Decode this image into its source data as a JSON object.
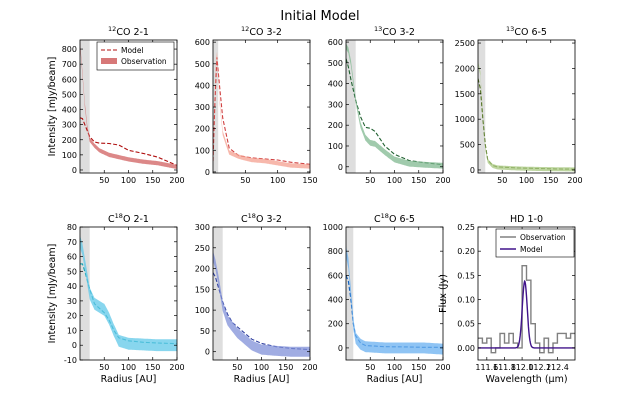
{
  "figure_title": "Initial Model",
  "chart_data": [
    {
      "type": "line",
      "title": "12CO 2-1",
      "title_sup": "12",
      "title_main": "CO 2-1",
      "xlim": [
        0,
        200
      ],
      "ylim": [
        -20,
        860
      ],
      "xticks": [
        "50",
        "100",
        "150",
        "200"
      ],
      "xtick_values": [
        50,
        100,
        150,
        200
      ],
      "yticks": [
        "0",
        "100",
        "200",
        "300",
        "400",
        "500",
        "600",
        "700",
        "800"
      ],
      "ytick_values": [
        0,
        100,
        200,
        300,
        400,
        500,
        600,
        700,
        800
      ],
      "ylabel": "Intensity [mJy/beam]",
      "xlabel": "",
      "shade": [
        0,
        20
      ],
      "color": "#d06060",
      "legend": [
        "Model",
        "Observation"
      ],
      "series": [
        {
          "name": "Model",
          "style": "dashed",
          "color": "#b01010",
          "x": [
            0,
            5,
            10,
            20,
            30,
            40,
            60,
            80,
            100,
            130,
            160,
            200
          ],
          "y": [
            345,
            340,
            300,
            220,
            185,
            178,
            175,
            165,
            130,
            110,
            85,
            30
          ]
        },
        {
          "name": "Observation",
          "style": "band",
          "color": "#d06060",
          "x": [
            0,
            5,
            10,
            15,
            20,
            30,
            40,
            50,
            60,
            80,
            100,
            130,
            160,
            200
          ],
          "y": [
            840,
            640,
            430,
            280,
            200,
            160,
            130,
            115,
            100,
            85,
            70,
            55,
            45,
            20
          ],
          "spread": 14
        }
      ]
    },
    {
      "type": "line",
      "title": "12CO 3-2",
      "title_sup": "12",
      "title_main": "CO 3-2",
      "xlim": [
        0,
        150
      ],
      "ylim": [
        -5,
        610
      ],
      "xticks": [
        "50",
        "100",
        "150"
      ],
      "xtick_values": [
        50,
        100,
        150
      ],
      "yticks": [
        "0",
        "100",
        "200",
        "300",
        "400",
        "500",
        "600"
      ],
      "ytick_values": [
        0,
        100,
        200,
        300,
        400,
        500,
        600
      ],
      "ylabel": "",
      "xlabel": "",
      "shade": [
        0,
        8
      ],
      "color": "#f4a090",
      "series": [
        {
          "name": "Model",
          "style": "dashed",
          "color": "#d04040",
          "x": [
            0,
            3,
            6,
            10,
            15,
            25,
            40,
            60,
            80,
            100,
            120,
            150
          ],
          "y": [
            50,
            320,
            530,
            400,
            250,
            110,
            75,
            65,
            60,
            55,
            45,
            35
          ]
        },
        {
          "name": "Observation",
          "style": "band",
          "color": "#f4a090",
          "x": [
            0,
            3,
            6,
            10,
            15,
            25,
            40,
            60,
            80,
            100,
            120,
            150
          ],
          "y": [
            40,
            420,
            560,
            330,
            180,
            90,
            70,
            55,
            50,
            40,
            30,
            25
          ],
          "spread": 10
        }
      ]
    },
    {
      "type": "line",
      "title": "13CO 3-2",
      "title_sup": "13",
      "title_main": "CO 3-2",
      "xlim": [
        0,
        200
      ],
      "ylim": [
        -30,
        610
      ],
      "xticks": [
        "50",
        "100",
        "150",
        "200"
      ],
      "xtick_values": [
        50,
        100,
        150,
        200
      ],
      "yticks": [
        "0",
        "100",
        "200",
        "300",
        "400",
        "500",
        "600"
      ],
      "ytick_values": [
        0,
        100,
        200,
        300,
        400,
        500,
        600
      ],
      "ylabel": "",
      "xlabel": "",
      "shade": [
        0,
        20
      ],
      "color": "#80b890",
      "series": [
        {
          "name": "Model",
          "style": "dashed",
          "color": "#206030",
          "x": [
            0,
            5,
            10,
            20,
            30,
            40,
            50,
            60,
            80,
            100,
            130,
            160,
            200
          ],
          "y": [
            520,
            480,
            420,
            320,
            240,
            190,
            185,
            170,
            100,
            60,
            30,
            20,
            10
          ]
        },
        {
          "name": "Observation",
          "style": "band",
          "color": "#80b890",
          "x": [
            0,
            5,
            10,
            20,
            30,
            40,
            50,
            60,
            80,
            100,
            130,
            160,
            200
          ],
          "y": [
            580,
            560,
            500,
            320,
            200,
            140,
            115,
            110,
            70,
            35,
            15,
            10,
            5
          ],
          "spread": 14
        }
      ]
    },
    {
      "type": "line",
      "title": "13CO 6-5",
      "title_sup": "13",
      "title_main": "CO 6-5",
      "xlim": [
        0,
        200
      ],
      "ylim": [
        -60,
        2560
      ],
      "xticks": [
        "50",
        "100",
        "150",
        "200"
      ],
      "xtick_values": [
        50,
        100,
        150,
        200
      ],
      "yticks": [
        "0",
        "500",
        "1000",
        "1500",
        "2000",
        "2500"
      ],
      "ytick_values": [
        0,
        500,
        1000,
        1500,
        2000,
        2500
      ],
      "ylabel": "",
      "xlabel": "",
      "shade": [
        0,
        15
      ],
      "color": "#a8c880",
      "series": [
        {
          "name": "Model",
          "style": "dashed",
          "color": "#507020",
          "x": [
            0,
            5,
            10,
            15,
            20,
            30,
            40,
            60,
            80,
            120,
            160,
            200
          ],
          "y": [
            1800,
            1600,
            1000,
            500,
            200,
            90,
            60,
            50,
            40,
            30,
            20,
            15
          ]
        },
        {
          "name": "Observation",
          "style": "band",
          "color": "#a8c880",
          "x": [
            0,
            5,
            10,
            15,
            20,
            30,
            40,
            60,
            80,
            120,
            160,
            200
          ],
          "y": [
            2100,
            1900,
            1100,
            450,
            180,
            80,
            50,
            40,
            30,
            20,
            15,
            10
          ],
          "spread": 40
        }
      ]
    },
    {
      "type": "line",
      "title": "C18O 2-1",
      "title_main_a": "C",
      "title_sup": "18",
      "title_main": "O 2-1",
      "xlim": [
        0,
        200
      ],
      "ylim": [
        -10,
        80
      ],
      "xticks": [
        "50",
        "100",
        "150",
        "200"
      ],
      "xtick_values": [
        50,
        100,
        150,
        200
      ],
      "yticks": [
        "-10",
        "0",
        "10",
        "20",
        "30",
        "40",
        "50",
        "60",
        "70",
        "80"
      ],
      "ytick_values": [
        -10,
        0,
        10,
        20,
        30,
        40,
        50,
        60,
        70,
        80
      ],
      "ylabel": "Intensity [mJy/beam]",
      "xlabel": "Radius [AU]",
      "shade": [
        0,
        20
      ],
      "color": "#60c8e8",
      "series": [
        {
          "name": "Model",
          "style": "dashed",
          "color": "#10a0b0",
          "x": [
            0,
            5,
            10,
            20,
            30,
            40,
            50,
            60,
            70,
            80,
            100,
            130,
            160,
            200
          ],
          "y": [
            55,
            55,
            50,
            38,
            28,
            25,
            22,
            17,
            10,
            5,
            3,
            2,
            1.5,
            1
          ]
        },
        {
          "name": "Observation",
          "style": "band",
          "color": "#60c8e8",
          "x": [
            0,
            5,
            10,
            20,
            30,
            40,
            50,
            60,
            70,
            80,
            100,
            130,
            160,
            200
          ],
          "y": [
            70,
            65,
            55,
            35,
            28,
            26,
            24,
            18,
            10,
            3,
            1,
            0.5,
            0,
            0
          ],
          "spread": 4
        }
      ]
    },
    {
      "type": "line",
      "title": "C18O 3-2",
      "title_main_a": "C",
      "title_sup": "18",
      "title_main": "O 3-2",
      "xlim": [
        0,
        200
      ],
      "ylim": [
        -20,
        300
      ],
      "xticks": [
        "50",
        "100",
        "150",
        "200"
      ],
      "xtick_values": [
        50,
        100,
        150,
        200
      ],
      "yticks": [
        "0",
        "50",
        "100",
        "150",
        "200",
        "250",
        "300"
      ],
      "ytick_values": [
        0,
        50,
        100,
        150,
        200,
        250,
        300
      ],
      "ylabel": "",
      "xlabel": "Radius [AU]",
      "shade": [
        0,
        20
      ],
      "color": "#8090d8",
      "series": [
        {
          "name": "Model",
          "style": "dashed",
          "color": "#3040a0",
          "x": [
            0,
            5,
            10,
            20,
            30,
            40,
            50,
            60,
            80,
            100,
            130,
            160,
            200
          ],
          "y": [
            190,
            180,
            160,
            120,
            90,
            70,
            60,
            50,
            30,
            20,
            12,
            8,
            5
          ]
        },
        {
          "name": "Observation",
          "style": "band",
          "color": "#8090d8",
          "x": [
            0,
            5,
            10,
            20,
            30,
            40,
            50,
            60,
            80,
            100,
            130,
            160,
            200
          ],
          "y": [
            230,
            210,
            180,
            110,
            75,
            60,
            45,
            35,
            15,
            5,
            2,
            0,
            0
          ],
          "spread": 12
        }
      ]
    },
    {
      "type": "line",
      "title": "C18O 6-5",
      "title_main_a": "C",
      "title_sup": "18",
      "title_main": "O 6-5",
      "xlim": [
        0,
        200
      ],
      "ylim": [
        -100,
        1000
      ],
      "xticks": [
        "50",
        "100",
        "150",
        "200"
      ],
      "xtick_values": [
        50,
        100,
        150,
        200
      ],
      "yticks": [
        "0",
        "200",
        "400",
        "600",
        "800",
        "1000"
      ],
      "ytick_values": [
        0,
        200,
        400,
        600,
        800,
        1000
      ],
      "ylabel": "",
      "xlabel": "Radius [AU]",
      "shade": [
        0,
        15
      ],
      "color": "#6ab0f0",
      "series": [
        {
          "name": "Model",
          "style": "dashed",
          "color": "#1060c0",
          "x": [
            0,
            5,
            10,
            15,
            20,
            30,
            40,
            60,
            80,
            120,
            160,
            200
          ],
          "y": [
            600,
            550,
            400,
            200,
            100,
            40,
            20,
            15,
            10,
            8,
            5,
            5
          ]
        },
        {
          "name": "Observation",
          "style": "band",
          "color": "#6ab0f0",
          "x": [
            0,
            5,
            10,
            15,
            20,
            30,
            40,
            60,
            80,
            120,
            160,
            200
          ],
          "y": [
            800,
            700,
            450,
            200,
            80,
            30,
            10,
            5,
            0,
            0,
            0,
            -10
          ],
          "spread": 45
        }
      ]
    },
    {
      "type": "line",
      "title": "HD 1-0",
      "xlim": [
        111.5,
        112.6
      ],
      "ylim": [
        -0.025,
        0.25
      ],
      "xticks": [
        "111.6",
        "111.8",
        "112.0",
        "112.2",
        "112.4"
      ],
      "xtick_values": [
        111.6,
        111.8,
        112.0,
        112.2,
        112.4
      ],
      "yticks": [
        "0.00",
        "0.05",
        "0.10",
        "0.15",
        "0.20",
        "0.25"
      ],
      "ytick_values": [
        0,
        0.05,
        0.1,
        0.15,
        0.2,
        0.25
      ],
      "ylabel": "Flux (Jy)",
      "xlabel": "Wavelength (μm)",
      "legend": [
        "Observation",
        "Model"
      ],
      "series": [
        {
          "name": "Observation",
          "style": "step",
          "color": "#808080",
          "x": [
            111.5,
            111.55,
            111.6,
            111.65,
            111.7,
            111.75,
            111.8,
            111.85,
            111.9,
            111.95,
            112.0,
            112.05,
            112.1,
            112.15,
            112.2,
            112.25,
            112.3,
            112.35,
            112.4,
            112.45,
            112.5,
            112.55,
            112.6
          ],
          "y": [
            0.02,
            0.01,
            0.02,
            -0.01,
            0.0,
            0.03,
            0.01,
            0.03,
            0.01,
            0.0,
            0.17,
            0.14,
            0.05,
            0.01,
            -0.01,
            0.02,
            -0.01,
            0.01,
            0.03,
            0.03,
            0.02,
            0.03,
            0.03
          ]
        },
        {
          "name": "Model",
          "style": "gauss",
          "color": "#40138a",
          "center": 112.03,
          "amplitude": 0.138,
          "sigma": 0.028
        }
      ]
    }
  ]
}
